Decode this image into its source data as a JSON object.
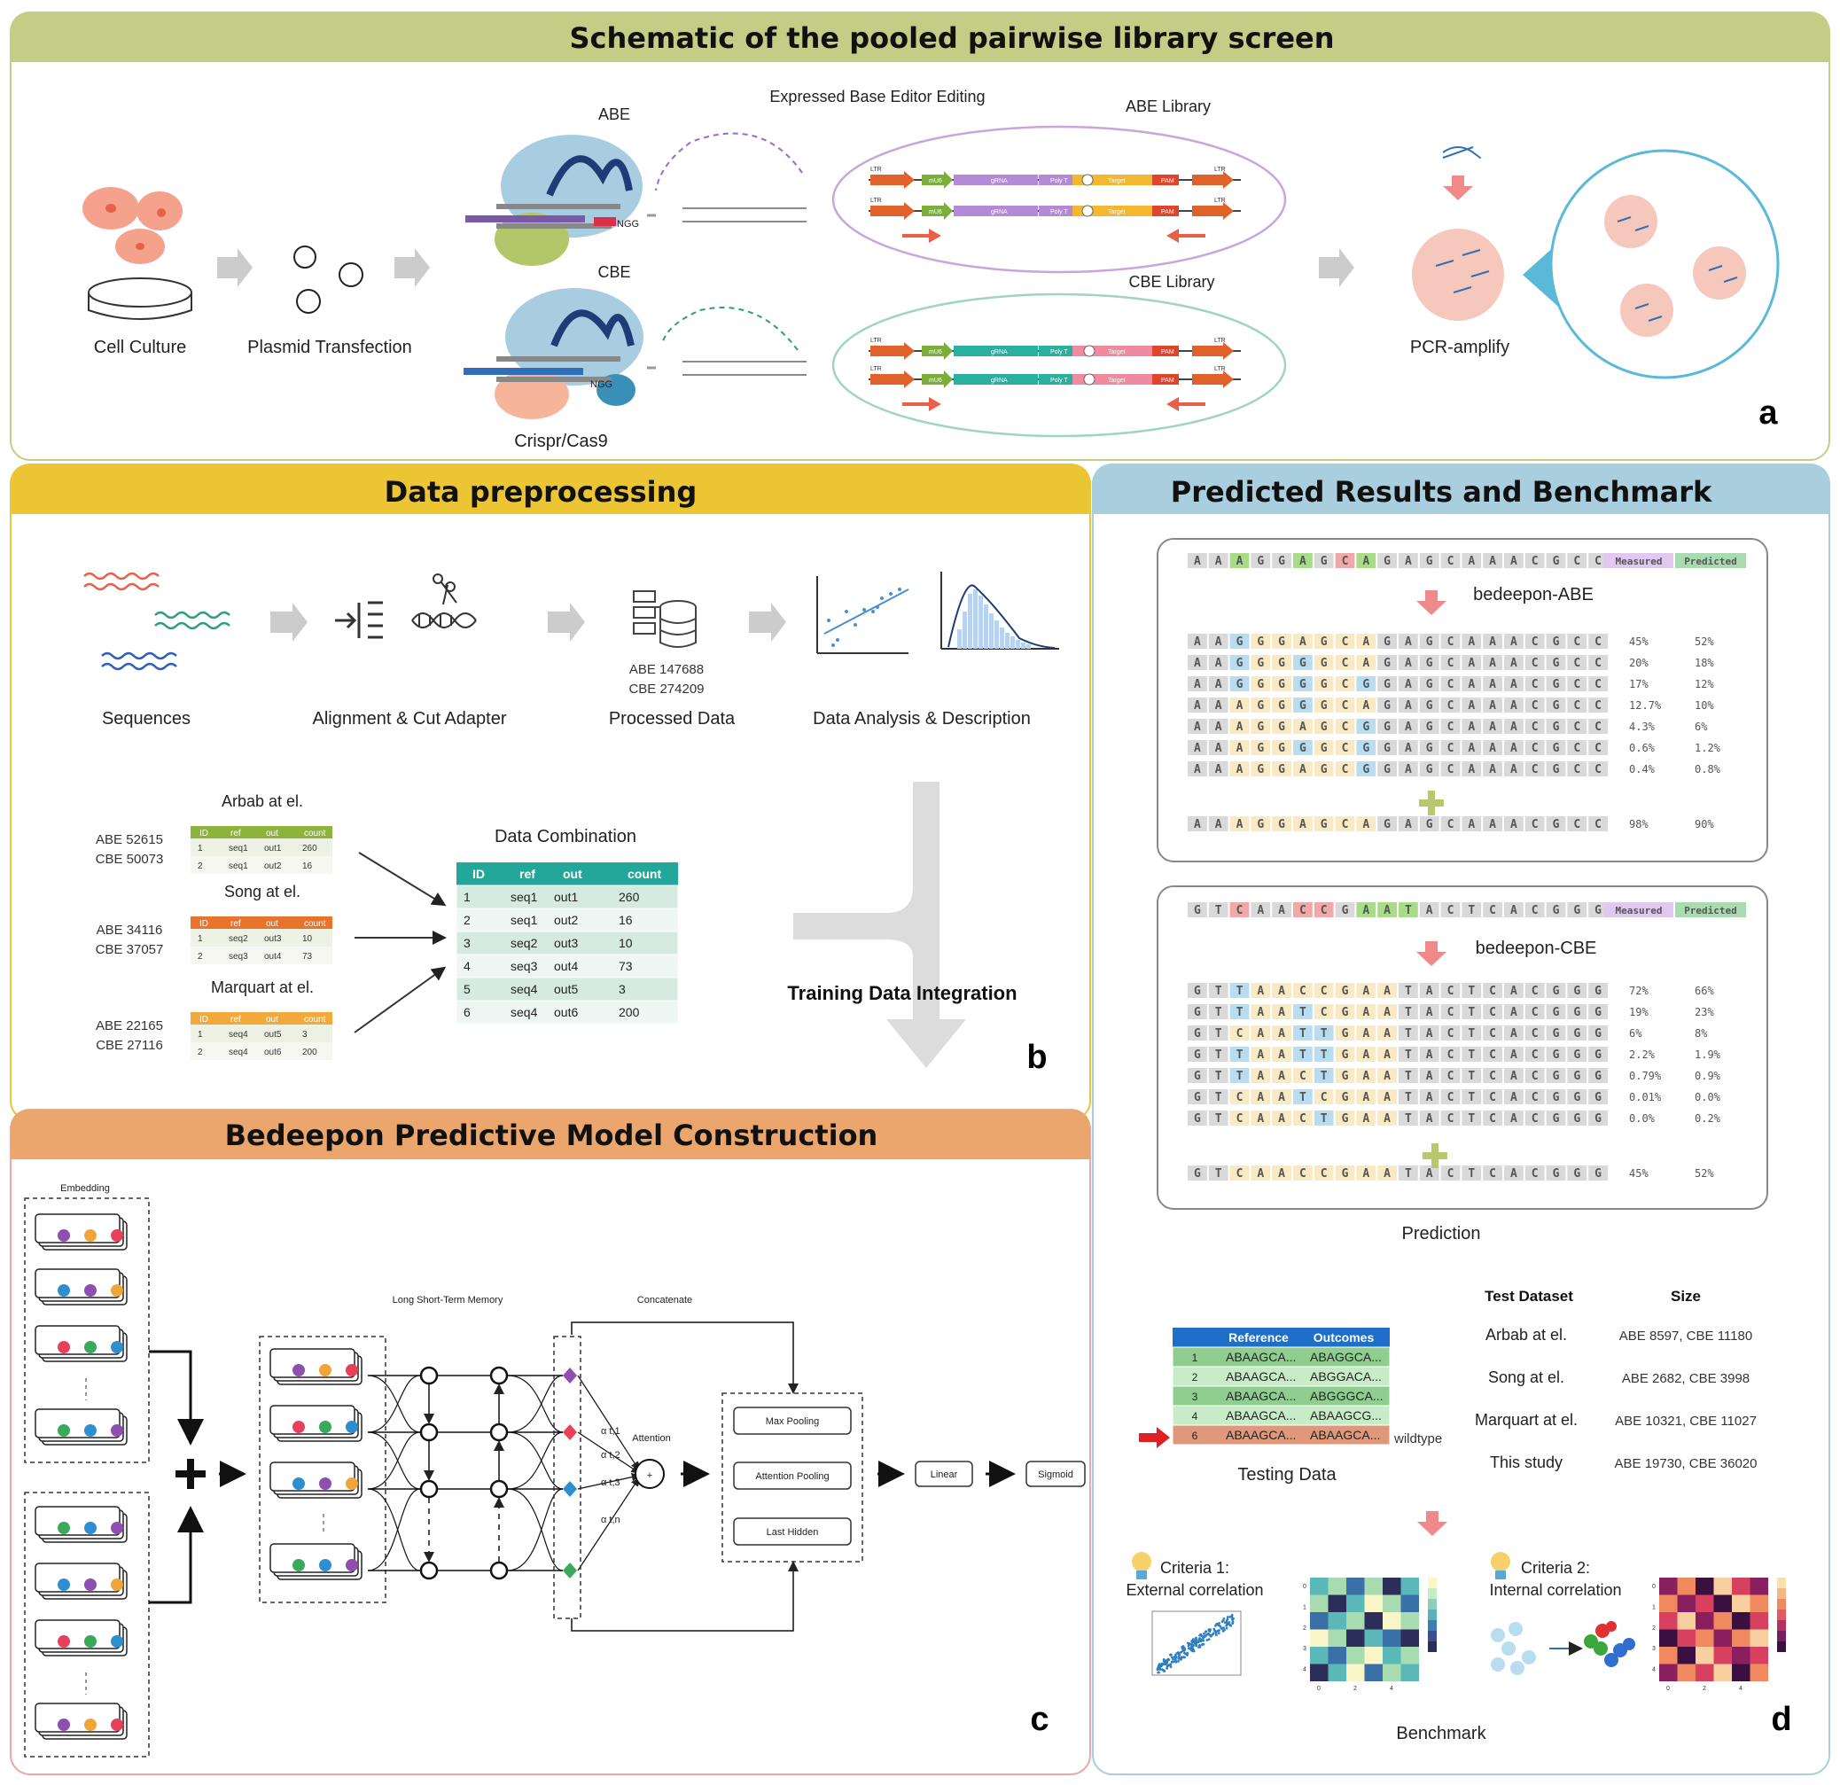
{
  "panel_a": {
    "title": "Schematic of the pooled pairwise library screen",
    "letter": "a",
    "cell_culture": "Cell Culture",
    "plasmid": "Plasmid Transfection",
    "abe": "ABE",
    "cbe": "CBE",
    "crispr": "Crispr/Cas9",
    "expressed": "Expressed Base Editor Editing",
    "abe_library": "ABE Library",
    "cbe_library": "CBE Library",
    "pcr": "PCR-amplify",
    "construct_labels": [
      "LTR",
      "mU6",
      "gRNA",
      "Poly T",
      "Target",
      "PAM",
      "LTR"
    ],
    "ngg": "NGG"
  },
  "panel_b": {
    "title": "Data preprocessing",
    "letter": "b",
    "steps": [
      "Sequences",
      "Alignment & Cut Adapter",
      "Processed Data",
      "Data Analysis & Description"
    ],
    "processed_counts": [
      "ABE 147688",
      "CBE 274209"
    ],
    "sources": [
      {
        "name": "Arbab at el.",
        "counts": [
          "ABE 52615",
          "CBE 50073"
        ],
        "rows": [
          [
            "1",
            "seq1",
            "out1",
            "260"
          ],
          [
            "2",
            "seq1",
            "out2",
            "16"
          ]
        ],
        "color": "#8db33a"
      },
      {
        "name": "Song at el.",
        "counts": [
          "ABE 34116",
          "CBE 37057"
        ],
        "rows": [
          [
            "1",
            "seq2",
            "out3",
            "10"
          ],
          [
            "2",
            "seq3",
            "out4",
            "73"
          ]
        ],
        "color": "#e8742b"
      },
      {
        "name": "Marquart at el.",
        "counts": [
          "ABE 22165",
          "CBE 27116"
        ],
        "rows": [
          [
            "1",
            "seq4",
            "out5",
            "3"
          ],
          [
            "2",
            "seq4",
            "out6",
            "200"
          ]
        ],
        "color": "#f2a93b"
      }
    ],
    "small_headers": [
      "ID",
      "ref",
      "out",
      "count"
    ],
    "combination_title": "Data Combination",
    "combination_headers": [
      "ID",
      "ref",
      "out",
      "count"
    ],
    "combination_rows": [
      [
        "1",
        "seq1",
        "out1",
        "260"
      ],
      [
        "2",
        "seq1",
        "out2",
        "16"
      ],
      [
        "3",
        "seq2",
        "out3",
        "10"
      ],
      [
        "4",
        "seq3",
        "out4",
        "73"
      ],
      [
        "5",
        "seq4",
        "out5",
        "3"
      ],
      [
        "6",
        "seq4",
        "out6",
        "200"
      ]
    ],
    "integration": "Training Data Integration"
  },
  "panel_c": {
    "title": "Bedeepon Predictive Model Construction",
    "letter": "c",
    "embedding": "Embedding",
    "lstm": "Long Short-Term Memory",
    "concatenate": "Concatenate",
    "attention": "Attention",
    "alphas": [
      "α t,1",
      "α t,2",
      "α t,3",
      "α t,n"
    ],
    "pooling": [
      "Max Pooling",
      "Attention Pooling",
      "Last Hidden"
    ],
    "linear": "Linear",
    "sigmoid": "Sigmoid"
  },
  "panel_d": {
    "title": "Predicted Results and Benchmark",
    "letter": "d",
    "measured": "Measured",
    "predicted": "Predicted",
    "abe_model": "bedeepon-ABE",
    "cbe_model": "bedeepon-CBE",
    "abe_reference": "AAAGGAGCAGAGCAAACGCC",
    "abe_rows": [
      {
        "seq": "AAGGGAGCAGAGCAAACGCC",
        "measured": "45%",
        "predicted": "52%"
      },
      {
        "seq": "AAGGGGGCAGAGCAAACGCC",
        "measured": "20%",
        "predicted": "18%"
      },
      {
        "seq": "AAGGGGGCGGAGCAAACGCC",
        "measured": "17%",
        "predicted": "12%"
      },
      {
        "seq": "AAAGGGGCAGAGCAAACGCC",
        "measured": "12.7%",
        "predicted": "10%"
      },
      {
        "seq": "AAAGGAGCGGAGCAAACGCC",
        "measured": "4.3%",
        "predicted": "6%"
      },
      {
        "seq": "AAAGGGGCGGAGCAAACGCC",
        "measured": "0.6%",
        "predicted": "1.2%"
      },
      {
        "seq": "AAAGGAGCGGAGCAAACGCC",
        "measured": "0.4%",
        "predicted": "0.8%"
      }
    ],
    "abe_total": {
      "seq": "AAAGGAGCAGAGCAAACGCC",
      "measured": "98%",
      "predicted": "90%"
    },
    "cbe_reference": "GTCAACCGAATACTCACGGG",
    "cbe_rows": [
      {
        "seq": "GTTAACCGAATACTCACGGG",
        "measured": "72%",
        "predicted": "66%"
      },
      {
        "seq": "GTTAATCGAATACTCACGGG",
        "measured": "19%",
        "predicted": "23%"
      },
      {
        "seq": "GTCAATTGAATACTCACGGG",
        "measured": "6%",
        "predicted": "8%"
      },
      {
        "seq": "GTTAATTGAATACTCACGGG",
        "measured": "2.2%",
        "predicted": "1.9%"
      },
      {
        "seq": "GTTAACTGAATACTCACGGG",
        "measured": "0.79%",
        "predicted": "0.9%"
      },
      {
        "seq": "GTCAATCGAATACTCACGGG",
        "measured": "0.01%",
        "predicted": "0.0%"
      },
      {
        "seq": "GTCAACTGAATACTCACGGG",
        "measured": "0.0%",
        "predicted": "0.2%"
      }
    ],
    "cbe_total": {
      "seq": "GTCAACCGAATACTCACGGG",
      "measured": "45%",
      "predicted": "52%"
    },
    "prediction": "Prediction",
    "test_headers": [
      "Reference",
      "Outcomes"
    ],
    "test_rows": [
      {
        "id": "1",
        "ref": "ABAAGCA...",
        "out": "ABAGGCA..."
      },
      {
        "id": "2",
        "ref": "ABAAGCA...",
        "out": "ABGGACA..."
      },
      {
        "id": "3",
        "ref": "ABAAGCA...",
        "out": "ABGGGCA..."
      },
      {
        "id": "4",
        "ref": "ABAAGCA...",
        "out": "ABAAGCG..."
      },
      {
        "id": "6",
        "ref": "ABAAGCA...",
        "out": "ABAAGCA..."
      }
    ],
    "wildtype": "wildtype",
    "testing_data": "Testing Data",
    "dataset_headers": [
      "Test Dataset",
      "Size"
    ],
    "datasets": [
      {
        "name": "Arbab at el.",
        "size": "ABE 8597, CBE 11180"
      },
      {
        "name": "Song at el.",
        "size": "ABE 2682, CBE 3998"
      },
      {
        "name": "Marquart at el.",
        "size": "ABE 10321, CBE 11027"
      },
      {
        "name": "This study",
        "size": "ABE 19730, CBE 36020"
      }
    ],
    "criteria1": [
      "Criteria 1:",
      "External correlation"
    ],
    "criteria2": [
      "Criteria 2:",
      "Internal correlation"
    ],
    "benchmark": "Benchmark",
    "heat_ticks_y": [
      "0",
      "1",
      "2",
      "3",
      "4"
    ],
    "heat_ticks_x": [
      "0",
      "2",
      "4"
    ]
  }
}
